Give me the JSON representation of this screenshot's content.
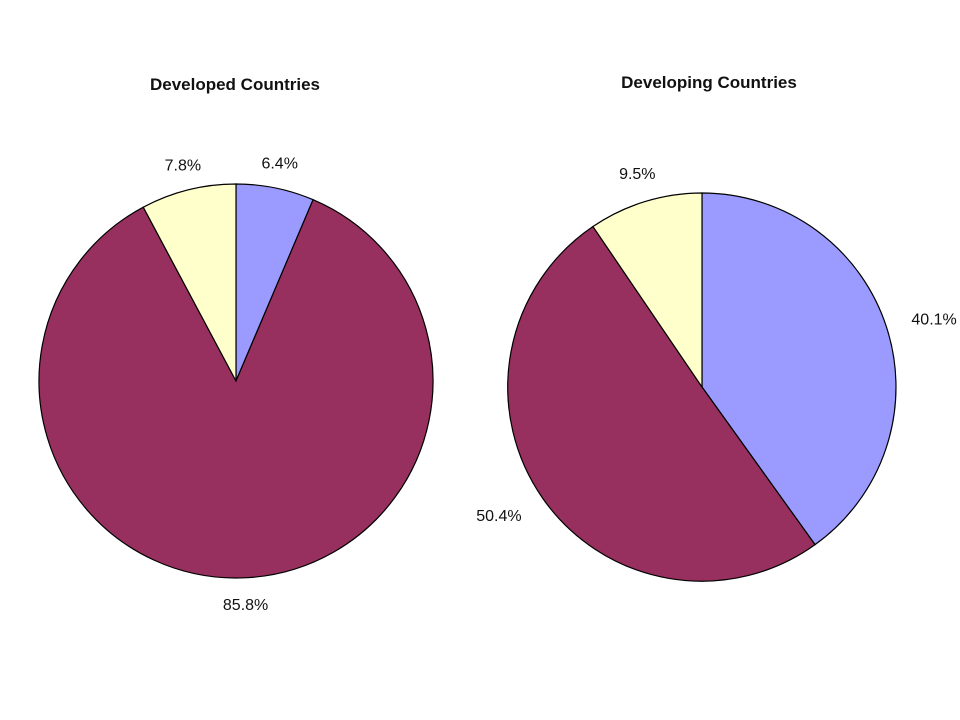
{
  "chart_data": [
    {
      "type": "pie",
      "title": "Developed Countries",
      "slices": [
        {
          "value": 6.4,
          "label": "6.4%",
          "color": "#9b9bff"
        },
        {
          "value": 85.8,
          "label": "85.8%",
          "color": "#97305f"
        },
        {
          "value": 7.8,
          "label": "7.8%",
          "color": "#ffffcc"
        }
      ],
      "start_angle_deg": 0,
      "direction": "clockwise"
    },
    {
      "type": "pie",
      "title": "Developing Countries",
      "slices": [
        {
          "value": 40.1,
          "label": "40.1%",
          "color": "#9b9bff"
        },
        {
          "value": 50.4,
          "label": "50.4%",
          "color": "#97305f"
        },
        {
          "value": 9.5,
          "label": "9.5%",
          "color": "#ffffcc"
        }
      ],
      "start_angle_deg": 0,
      "direction": "clockwise"
    }
  ]
}
